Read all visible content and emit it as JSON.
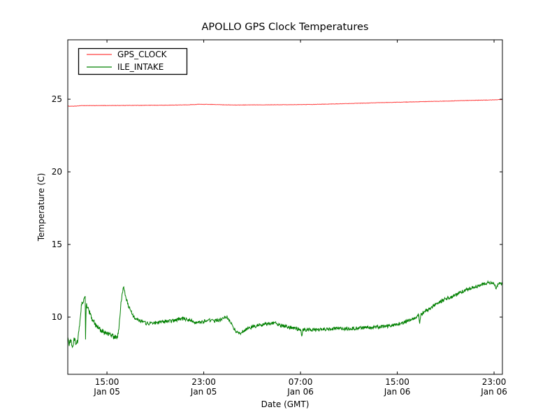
{
  "chart_data": {
    "type": "line",
    "title": "APOLLO GPS Clock Temperatures",
    "xlabel": "Date (GMT)",
    "ylabel": "Temperature (C)",
    "x_unit_note": "hours since Jan 05 00:00 GMT (as depicted by axis tick labels)",
    "xlim": [
      11.76,
      47.69
    ],
    "ylim": [
      6.06,
      29.09
    ],
    "grid": false,
    "x_ticks": [
      {
        "value": 15,
        "time": "15:00",
        "date": "Jan 05"
      },
      {
        "value": 23,
        "time": "23:00",
        "date": "Jan 05"
      },
      {
        "value": 31,
        "time": "07:00",
        "date": "Jan 06"
      },
      {
        "value": 39,
        "time": "15:00",
        "date": "Jan 06"
      },
      {
        "value": 47,
        "time": "23:00",
        "date": "Jan 06"
      }
    ],
    "y_ticks": [
      10,
      15,
      20,
      25
    ],
    "legend": {
      "position": "upper-left",
      "entries": [
        {
          "label": "GPS_CLOCK",
          "color": "#ff4040"
        },
        {
          "label": "ILE_INTAKE",
          "color": "#008000"
        }
      ]
    },
    "series": [
      {
        "name": "GPS_CLOCK",
        "color": "#ff4040",
        "noise_amplitude": 0.012,
        "points": [
          [
            11.76,
            24.52
          ],
          [
            12.4,
            24.52
          ],
          [
            12.9,
            24.56
          ],
          [
            14.0,
            24.56
          ],
          [
            16.0,
            24.57
          ],
          [
            18.0,
            24.58
          ],
          [
            20.0,
            24.59
          ],
          [
            21.5,
            24.61
          ],
          [
            22.6,
            24.65
          ],
          [
            23.6,
            24.64
          ],
          [
            24.6,
            24.62
          ],
          [
            25.5,
            24.6
          ],
          [
            27.0,
            24.61
          ],
          [
            29.0,
            24.62
          ],
          [
            31.0,
            24.63
          ],
          [
            33.0,
            24.66
          ],
          [
            35.0,
            24.7
          ],
          [
            37.0,
            24.75
          ],
          [
            39.0,
            24.79
          ],
          [
            41.0,
            24.83
          ],
          [
            43.0,
            24.87
          ],
          [
            45.0,
            24.92
          ],
          [
            46.5,
            24.94
          ],
          [
            47.69,
            24.98
          ]
        ]
      },
      {
        "name": "ILE_INTAKE",
        "color": "#008000",
        "noise_amplitude": 0.12,
        "points": [
          [
            11.76,
            8.45
          ],
          [
            11.9,
            8.1
          ],
          [
            12.0,
            8.5
          ],
          [
            12.15,
            7.9
          ],
          [
            12.3,
            8.5
          ],
          [
            12.45,
            8.2
          ],
          [
            12.6,
            8.4
          ],
          [
            12.75,
            9.6
          ],
          [
            12.9,
            10.9
          ],
          [
            13.05,
            11.1
          ],
          [
            13.2,
            11.3
          ],
          [
            13.23,
            7.95
          ],
          [
            13.27,
            10.95
          ],
          [
            13.45,
            10.6
          ],
          [
            13.7,
            10.0
          ],
          [
            14.0,
            9.5
          ],
          [
            14.4,
            9.15
          ],
          [
            14.8,
            8.95
          ],
          [
            15.2,
            8.8
          ],
          [
            15.6,
            8.65
          ],
          [
            15.85,
            8.6
          ],
          [
            16.0,
            9.3
          ],
          [
            16.15,
            10.9
          ],
          [
            16.3,
            11.8
          ],
          [
            16.38,
            12.1
          ],
          [
            16.55,
            11.4
          ],
          [
            16.8,
            10.7
          ],
          [
            17.1,
            10.15
          ],
          [
            17.45,
            9.85
          ],
          [
            17.8,
            9.75
          ],
          [
            18.3,
            9.55
          ],
          [
            18.9,
            9.6
          ],
          [
            19.5,
            9.65
          ],
          [
            20.0,
            9.7
          ],
          [
            20.6,
            9.75
          ],
          [
            21.0,
            9.9
          ],
          [
            21.5,
            9.85
          ],
          [
            22.0,
            9.75
          ],
          [
            22.6,
            9.6
          ],
          [
            23.0,
            9.7
          ],
          [
            23.4,
            9.8
          ],
          [
            23.9,
            9.75
          ],
          [
            24.4,
            9.8
          ],
          [
            24.9,
            10.05
          ],
          [
            25.3,
            9.5
          ],
          [
            25.7,
            8.95
          ],
          [
            26.0,
            8.9
          ],
          [
            26.6,
            9.2
          ],
          [
            27.4,
            9.4
          ],
          [
            28.3,
            9.55
          ],
          [
            28.9,
            9.6
          ],
          [
            29.4,
            9.4
          ],
          [
            30.0,
            9.3
          ],
          [
            30.6,
            9.2
          ],
          [
            31.0,
            9.15
          ],
          [
            31.1,
            8.7
          ],
          [
            31.2,
            9.15
          ],
          [
            32.0,
            9.1
          ],
          [
            33.0,
            9.15
          ],
          [
            34.0,
            9.2
          ],
          [
            35.0,
            9.2
          ],
          [
            36.0,
            9.25
          ],
          [
            37.0,
            9.3
          ],
          [
            38.0,
            9.35
          ],
          [
            38.7,
            9.45
          ],
          [
            39.5,
            9.6
          ],
          [
            40.2,
            9.85
          ],
          [
            40.75,
            10.1
          ],
          [
            40.85,
            9.65
          ],
          [
            40.95,
            10.2
          ],
          [
            41.5,
            10.5
          ],
          [
            42.2,
            10.9
          ],
          [
            43.0,
            11.25
          ],
          [
            43.8,
            11.5
          ],
          [
            44.6,
            11.85
          ],
          [
            45.3,
            12.05
          ],
          [
            46.0,
            12.25
          ],
          [
            46.6,
            12.4
          ],
          [
            47.0,
            12.3
          ],
          [
            47.15,
            11.95
          ],
          [
            47.35,
            12.3
          ],
          [
            47.69,
            12.25
          ]
        ]
      }
    ]
  },
  "style": {
    "axis_color": "#000000",
    "background": "#ffffff",
    "text_color": "#000000"
  }
}
